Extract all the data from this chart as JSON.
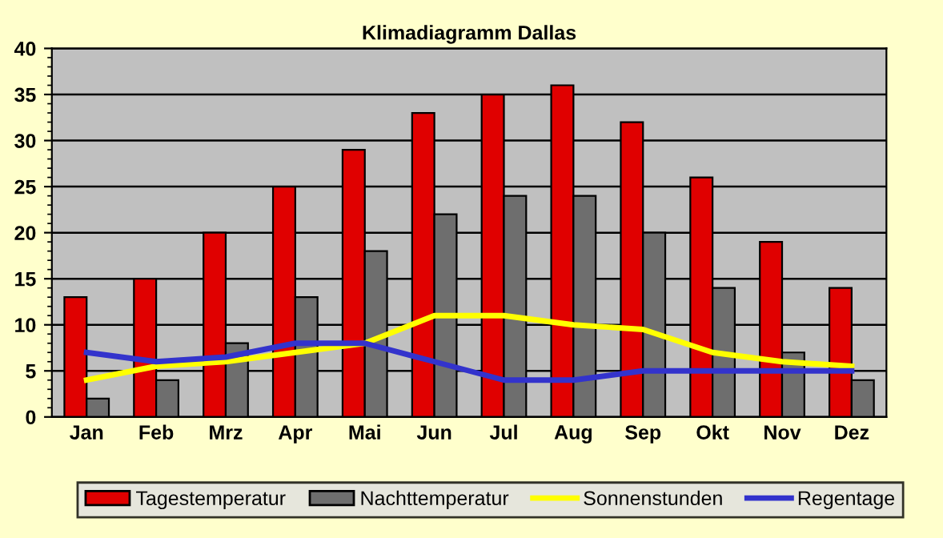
{
  "chart_data": {
    "type": "bar",
    "title": "Klimadiagramm Dallas",
    "categories": [
      "Jan",
      "Feb",
      "Mrz",
      "Apr",
      "Mai",
      "Jun",
      "Jul",
      "Aug",
      "Sep",
      "Okt",
      "Nov",
      "Dez"
    ],
    "series": [
      {
        "name": "Tagestemperatur",
        "color": "#e00000",
        "values": [
          13,
          15,
          20,
          25,
          29,
          33,
          35,
          36,
          32,
          26,
          19,
          14
        ]
      },
      {
        "name": "Nachttemperatur",
        "color": "#6e6e6e",
        "values": [
          2,
          4,
          8,
          13,
          18,
          22,
          24,
          24,
          20,
          14,
          7,
          4
        ]
      },
      {
        "name": "Sonnenstunden",
        "type": "line",
        "color": "#ffff00",
        "values": [
          4,
          5.5,
          6,
          7,
          8,
          11,
          11,
          10,
          9.5,
          7,
          6,
          5.5
        ]
      },
      {
        "name": "Regentage",
        "type": "line",
        "color": "#3333cc",
        "values": [
          7,
          6,
          6.5,
          8,
          8,
          6,
          4,
          4,
          5,
          5,
          5,
          5
        ]
      }
    ],
    "ylim": [
      0,
      40
    ],
    "yticks": [
      0,
      5,
      10,
      15,
      20,
      25,
      30,
      35,
      40
    ],
    "grid": "y",
    "legend": "bottom"
  }
}
